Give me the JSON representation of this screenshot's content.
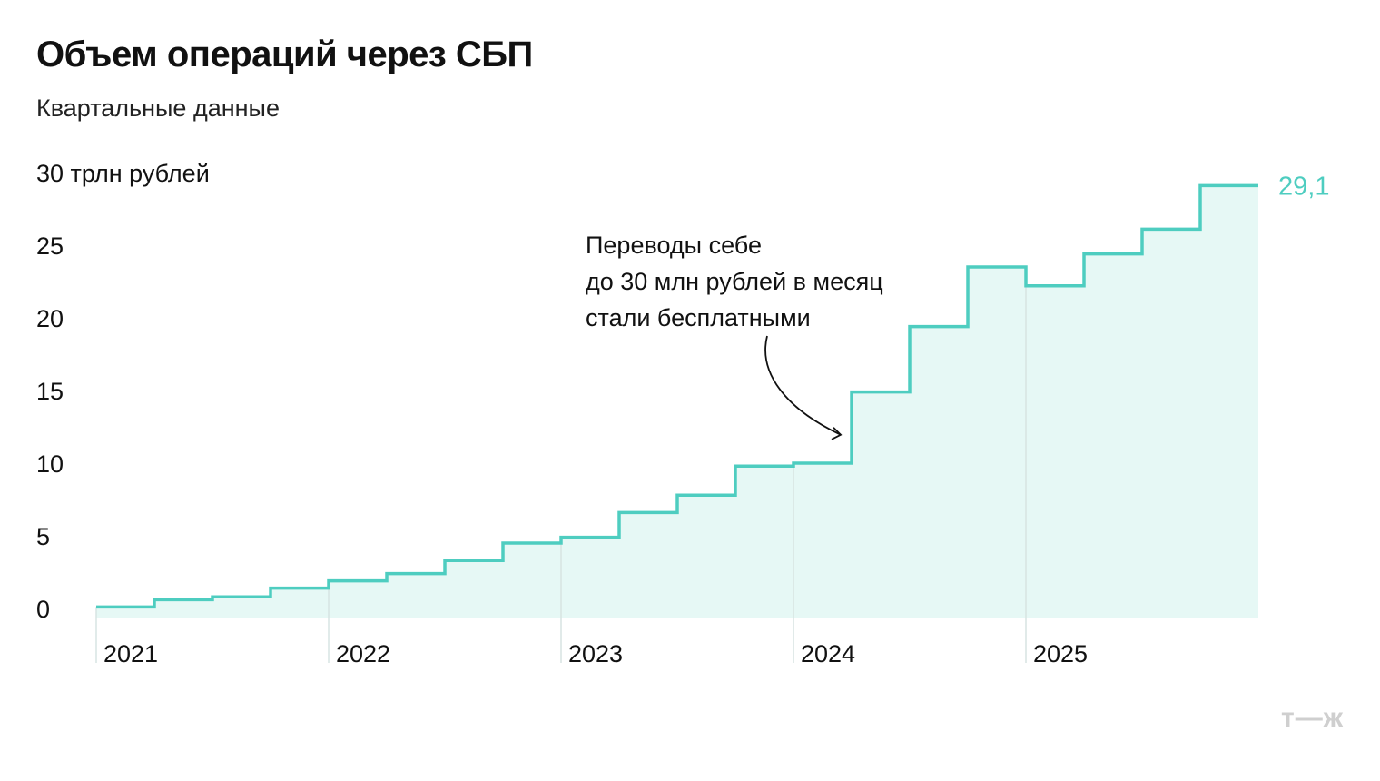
{
  "chart_data": {
    "type": "line",
    "step": true,
    "title": "Объем операций через СБП",
    "subtitle": "Квартальные данные",
    "y_unit_label": "30 трлн рублей",
    "ylim": [
      0,
      30
    ],
    "y_ticks": [
      "0",
      "5",
      "10",
      "15",
      "20",
      "25"
    ],
    "x_ticks": [
      "2021",
      "2022",
      "2023",
      "2024",
      "2025"
    ],
    "quarters": [
      "2021 Q1",
      "2021 Q2",
      "2021 Q3",
      "2021 Q4",
      "2022 Q1",
      "2022 Q2",
      "2022 Q3",
      "2022 Q4",
      "2023 Q1",
      "2023 Q2",
      "2023 Q3",
      "2023 Q4",
      "2024 Q1",
      "2024 Q2",
      "2024 Q3",
      "2024 Q4",
      "2025 Q1",
      "2025 Q2",
      "2025 Q3",
      "2025 Q4"
    ],
    "values": [
      0.1,
      0.6,
      0.8,
      1.4,
      1.9,
      2.4,
      3.3,
      4.5,
      4.9,
      6.6,
      7.8,
      9.8,
      10.0,
      14.9,
      19.4,
      23.5,
      22.2,
      24.4,
      26.1,
      29.1
    ],
    "last_value_label": "29,1",
    "annotation": {
      "lines": [
        "Переводы себе",
        "до 30 млн рублей в месяц",
        "стали бесплатными"
      ],
      "target_quarter": "2024 Q1"
    },
    "colors": {
      "line": "#4ecdc0",
      "area": "#e6f8f5",
      "value_label": "#4ecdc0",
      "grid": "#d7e4e2"
    }
  },
  "brand": {
    "logo": "т—ж"
  }
}
